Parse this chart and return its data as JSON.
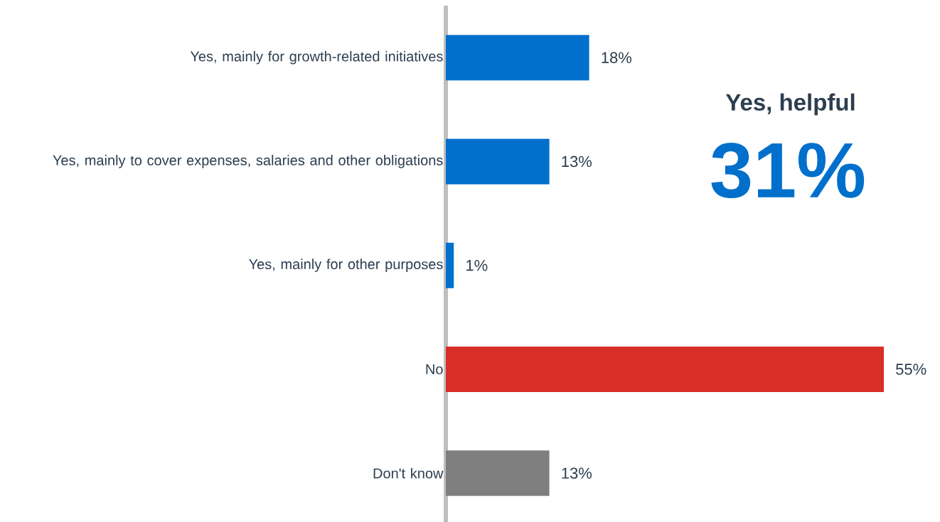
{
  "chart_data": {
    "type": "bar",
    "orientation": "horizontal",
    "categories": [
      "Yes, mainly for growth-related initiatives",
      "Yes, mainly to cover expenses, salaries and other obligations",
      "Yes, mainly for other purposes",
      "No",
      "Don't know"
    ],
    "values": [
      18,
      13,
      1,
      55,
      13
    ],
    "colors": [
      "#0070cc",
      "#0070cc",
      "#0070cc",
      "#d92d27",
      "#7f7f7f"
    ],
    "value_labels": [
      "18%",
      "13%",
      "1%",
      "55%",
      "13%"
    ],
    "xlim": [
      0,
      55
    ],
    "tick_labels": "y",
    "annotations": [
      "Yes, helpful",
      "31%"
    ]
  }
}
